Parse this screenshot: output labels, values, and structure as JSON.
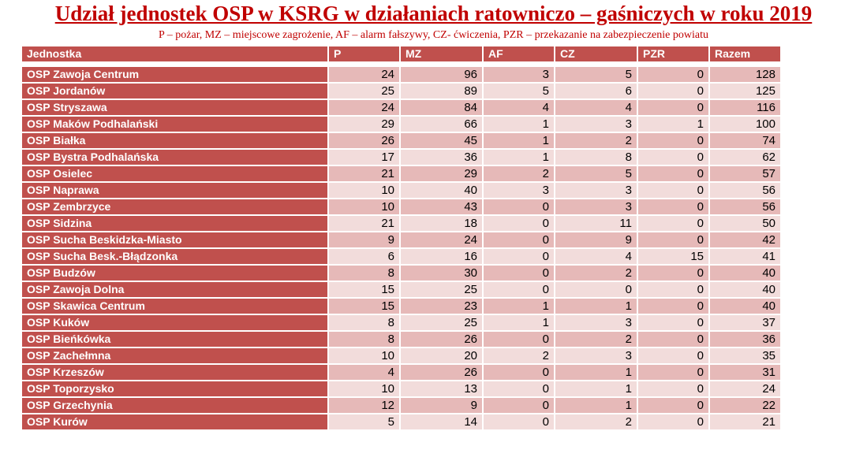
{
  "title": "Udział jednostek OSP w KSRG w działaniach ratowniczo – gaśniczych w roku 2019",
  "subtitle": "P – pożar, MZ – miejscowe zagrożenie, AF – alarm fałszywy, CZ- ćwiczenia, PZR – przekazanie na zabezpieczenie powiatu",
  "table": {
    "headers": [
      "Jednostka",
      "P",
      "MZ",
      "AF",
      "CZ",
      "PZR",
      "Razem"
    ],
    "rows": [
      [
        "OSP Zawoja Centrum",
        "24",
        "96",
        "3",
        "5",
        "0",
        "128"
      ],
      [
        "OSP Jordanów",
        "25",
        "89",
        "5",
        "6",
        "0",
        "125"
      ],
      [
        "OSP Stryszawa",
        "24",
        "84",
        "4",
        "4",
        "0",
        "116"
      ],
      [
        "OSP Maków Podhalański",
        "29",
        "66",
        "1",
        "3",
        "1",
        "100"
      ],
      [
        "OSP Białka",
        "26",
        "45",
        "1",
        "2",
        "0",
        "74"
      ],
      [
        "OSP Bystra Podhalańska",
        "17",
        "36",
        "1",
        "8",
        "0",
        "62"
      ],
      [
        "OSP Osielec",
        "21",
        "29",
        "2",
        "5",
        "0",
        "57"
      ],
      [
        "OSP Naprawa",
        "10",
        "40",
        "3",
        "3",
        "0",
        "56"
      ],
      [
        "OSP Zembrzyce",
        "10",
        "43",
        "0",
        "3",
        "0",
        "56"
      ],
      [
        "OSP Sidzina",
        "21",
        "18",
        "0",
        "11",
        "0",
        "50"
      ],
      [
        "OSP Sucha Beskidzka-Miasto",
        "9",
        "24",
        "0",
        "9",
        "0",
        "42"
      ],
      [
        "OSP Sucha Besk.-Błądzonka",
        "6",
        "16",
        "0",
        "4",
        "15",
        "41"
      ],
      [
        "OSP Budzów",
        "8",
        "30",
        "0",
        "2",
        "0",
        "40"
      ],
      [
        "OSP Zawoja Dolna",
        "15",
        "25",
        "0",
        "0",
        "0",
        "40"
      ],
      [
        "OSP Skawica Centrum",
        "15",
        "23",
        "1",
        "1",
        "0",
        "40"
      ],
      [
        "OSP Kuków",
        "8",
        "25",
        "1",
        "3",
        "0",
        "37"
      ],
      [
        "OSP Bieńkówka",
        "8",
        "26",
        "0",
        "2",
        "0",
        "36"
      ],
      [
        "OSP Zachełmna",
        "10",
        "20",
        "2",
        "3",
        "0",
        "35"
      ],
      [
        "OSP Krzeszów",
        "4",
        "26",
        "0",
        "1",
        "0",
        "31"
      ],
      [
        "OSP Toporzysko",
        "10",
        "13",
        "0",
        "1",
        "0",
        "24"
      ],
      [
        "OSP Grzechynia",
        "12",
        "9",
        "0",
        "1",
        "0",
        "22"
      ],
      [
        "OSP Kurów",
        "5",
        "14",
        "0",
        "2",
        "0",
        "21"
      ]
    ]
  },
  "colors": {
    "title": "#c00000",
    "header_bg": "#c0504d",
    "row_dark": "#e6b9b8",
    "row_light": "#f2dcdb"
  }
}
